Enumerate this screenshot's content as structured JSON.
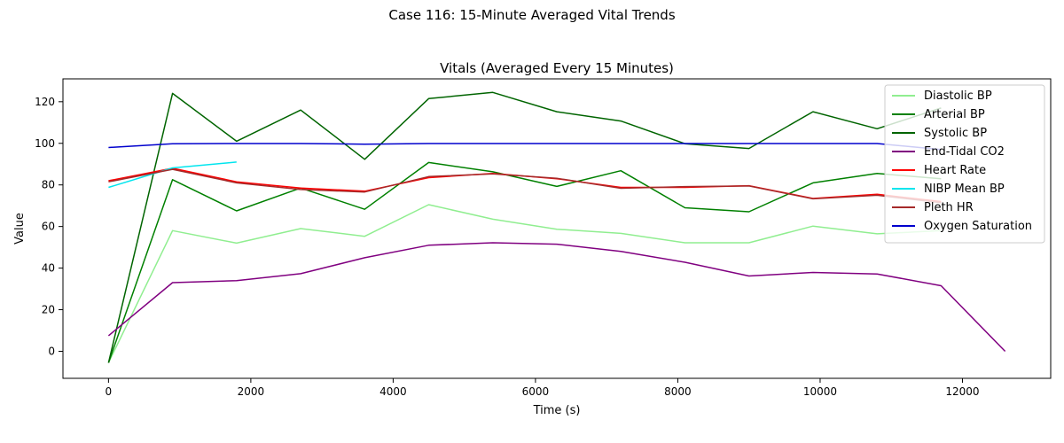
{
  "suptitle": "Case 116: 15-Minute Averaged Vital Trends",
  "chart_data": {
    "type": "line",
    "title": "Vitals (Averaged Every 15 Minutes)",
    "xlabel": "Time (s)",
    "ylabel": "Value",
    "xlim": [
      -640,
      13240
    ],
    "ylim": [
      -13,
      131
    ],
    "xticks": [
      0,
      2000,
      4000,
      6000,
      8000,
      10000,
      12000
    ],
    "yticks": [
      0,
      20,
      40,
      60,
      80,
      100,
      120
    ],
    "grid": false,
    "legend_position": "top-right",
    "series": [
      {
        "name": "Diastolic BP",
        "color": "#90ee90",
        "x": [
          0,
          900,
          1800,
          2700,
          3600,
          4500,
          5400,
          6300,
          7200,
          8100,
          9000,
          9900,
          10800,
          11700
        ],
        "y": [
          -5.5,
          58,
          52,
          59,
          55.3,
          70.5,
          63.5,
          58.7,
          56.7,
          52.2,
          52.2,
          60.2,
          56.5,
          58
        ]
      },
      {
        "name": "Arterial BP",
        "color": "#008000",
        "x": [
          0,
          900,
          1800,
          2700,
          3600,
          4500,
          5400,
          6300,
          7200,
          8100,
          9000,
          9900,
          10800,
          11700
        ],
        "y": [
          -5.5,
          82.5,
          67.5,
          78.5,
          68.3,
          90.8,
          86.3,
          79.3,
          86.8,
          69,
          67.1,
          81,
          85.5,
          83
        ]
      },
      {
        "name": "Systolic BP",
        "color": "#006400",
        "x": [
          0,
          900,
          1800,
          2700,
          3600,
          4500,
          5400,
          6300,
          7200,
          8100,
          9000,
          9900,
          10800,
          11700
        ],
        "y": [
          -5.5,
          124,
          101,
          116,
          92.3,
          121.5,
          124.5,
          115.2,
          110.7,
          99.8,
          97.5,
          115.2,
          107,
          117
        ]
      },
      {
        "name": "End-Tidal CO2",
        "color": "#800080",
        "x": [
          0,
          900,
          1800,
          2700,
          3600,
          4500,
          5400,
          6300,
          7200,
          8100,
          9000,
          9900,
          10800,
          11700,
          12600
        ],
        "y": [
          7.5,
          33,
          34,
          37.3,
          45,
          51,
          52.2,
          51.5,
          48,
          42.8,
          36.2,
          37.9,
          37.2,
          31.5,
          0
        ]
      },
      {
        "name": "Heart Rate",
        "color": "#ff0000",
        "x": [
          0,
          900,
          1800,
          2700,
          3600,
          4500,
          5400,
          6300,
          7200,
          8100,
          9000,
          9900,
          10800,
          11700
        ],
        "y": [
          82,
          88,
          81.5,
          78.5,
          77,
          83.5,
          85.5,
          83,
          78.8,
          78.8,
          79.6,
          73.5,
          75.5,
          72
        ]
      },
      {
        "name": "NIBP Mean BP",
        "color": "#00e5ee",
        "x": [
          0,
          900,
          1800
        ],
        "y": [
          78.8,
          88.2,
          91
        ]
      },
      {
        "name": "Pleth HR",
        "color": "#a52a2a",
        "x": [
          0,
          900,
          1800,
          2700,
          3600,
          4500,
          5400,
          6300,
          7200,
          8100,
          9000,
          9900,
          10800,
          11700
        ],
        "y": [
          81.5,
          87.5,
          81,
          77.8,
          76.6,
          84,
          85.3,
          83.2,
          78.4,
          79.2,
          79.5,
          73.3,
          75,
          71.5
        ]
      },
      {
        "name": "Oxygen Saturation",
        "color": "#0000cd",
        "x": [
          0,
          900,
          1800,
          2700,
          3600,
          4500,
          5400,
          6300,
          7200,
          8100,
          9000,
          9900,
          10800,
          11700
        ],
        "y": [
          98,
          99.8,
          99.9,
          99.9,
          99.6,
          99.9,
          99.9,
          99.9,
          99.9,
          99.9,
          99.9,
          99.9,
          99.9,
          97
        ]
      }
    ]
  }
}
